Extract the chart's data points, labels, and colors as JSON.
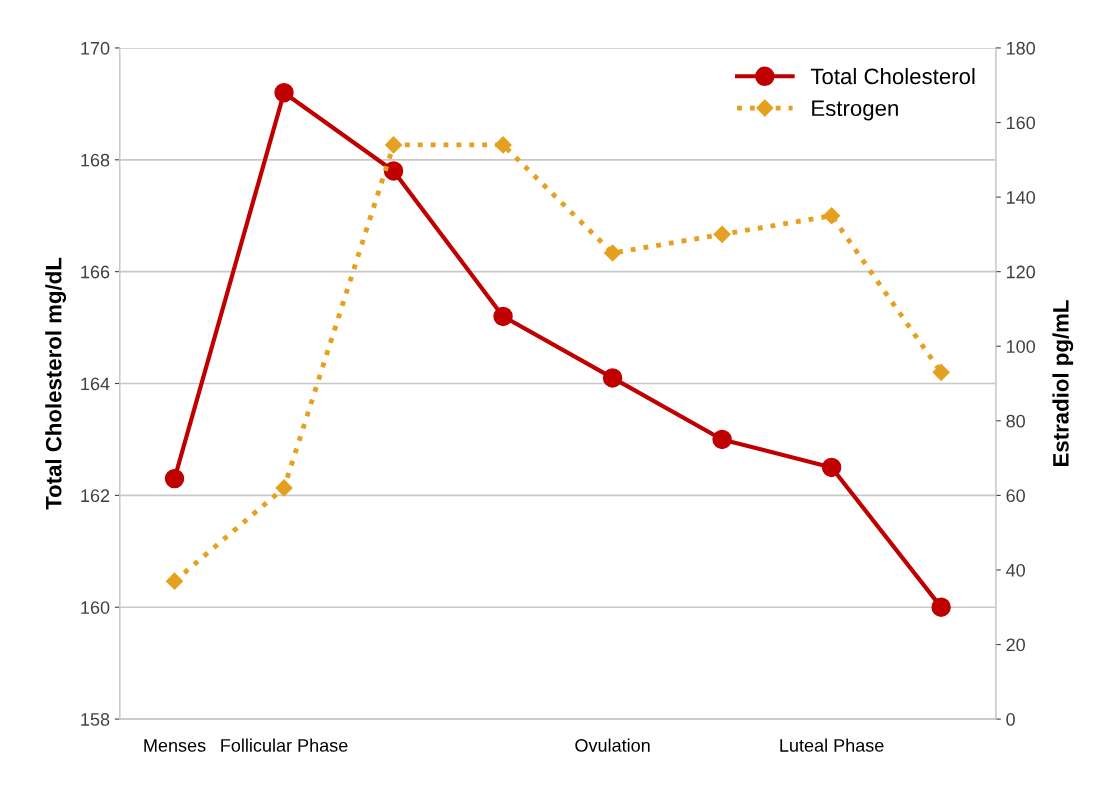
{
  "chart_data": {
    "type": "line",
    "categories": [
      "Menses",
      "Follicular Phase",
      null,
      null,
      "Ovulation",
      null,
      "Luteal Phase",
      null
    ],
    "ylabel": "Total Cholesterol mg/dL",
    "y2label": "Estradiol pg/mL",
    "ylim": [
      158,
      170
    ],
    "yticks": [
      158,
      160,
      162,
      164,
      166,
      168,
      170
    ],
    "y2lim": [
      0,
      180
    ],
    "y2ticks": [
      0,
      20,
      40,
      60,
      80,
      100,
      120,
      140,
      160,
      180
    ],
    "grid": "y",
    "legend": "top right",
    "series": [
      {
        "name": "Total Cholesterol",
        "color": "#c00000",
        "values": [
          162.3,
          169.2,
          167.8,
          165.2,
          164.1,
          163.0,
          162.5,
          160.0
        ],
        "marker": "circle",
        "line_style": "solid"
      },
      {
        "name": "Estrogen",
        "color": "#e6a020",
        "axis": "y2",
        "values": [
          37,
          62,
          154,
          154,
          125,
          130,
          135,
          93
        ],
        "marker": "diamond",
        "line_style": "dotted"
      }
    ]
  }
}
